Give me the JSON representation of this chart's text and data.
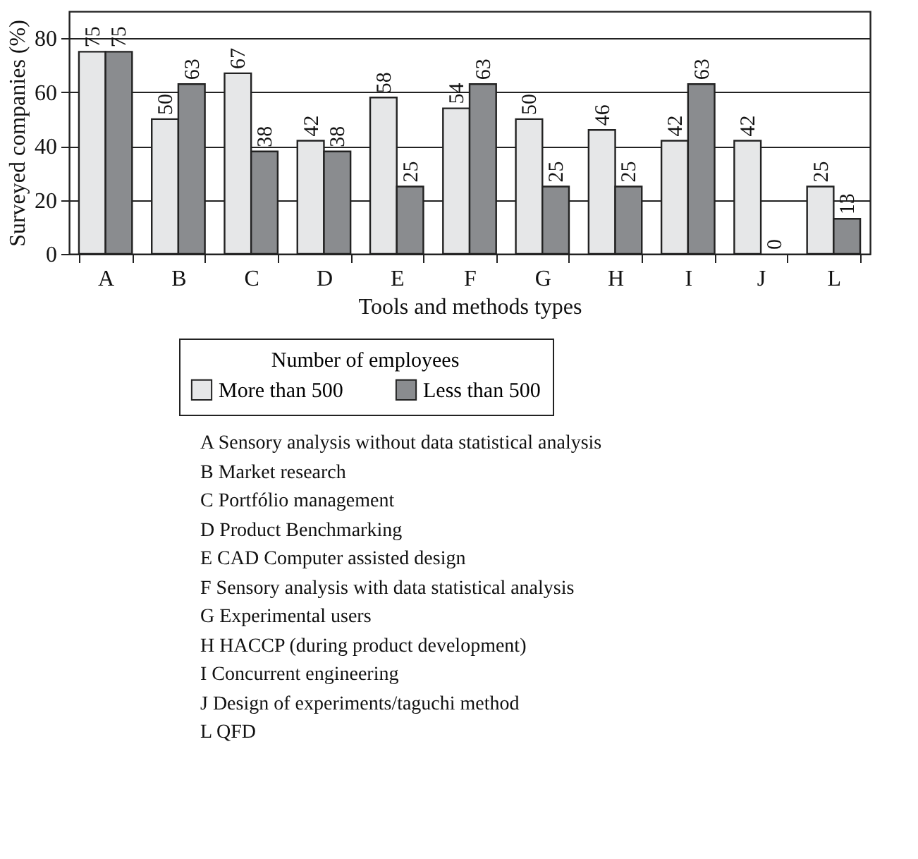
{
  "chart_data": {
    "type": "bar",
    "xlabel": "Tools and methods types",
    "ylabel": "Surveyed companies (%)",
    "legend_title": "Number of employees",
    "categories": [
      "A",
      "B",
      "C",
      "D",
      "E",
      "F",
      "G",
      "H",
      "I",
      "J",
      "L"
    ],
    "series": [
      {
        "name": "More than 500",
        "color": "#e6e7e8",
        "values": [
          75,
          50,
          67,
          42,
          58,
          54,
          50,
          46,
          42,
          42,
          25
        ]
      },
      {
        "name": "Less than 500",
        "color": "#8a8c8f",
        "values": [
          75,
          63,
          38,
          38,
          25,
          63,
          25,
          25,
          63,
          0,
          13
        ]
      }
    ],
    "ylim": [
      0,
      90
    ],
    "yticks": [
      0,
      20,
      40,
      60,
      80
    ],
    "grid": "y",
    "legend": "bottom",
    "data_labels": true,
    "annotations": [
      "A Sensory analysis without data statistical analysis",
      "B Market research",
      "C Portfólio management",
      "D Product Benchmarking",
      "E CAD Computer assisted design",
      "F Sensory analysis with data statistical analysis",
      "G Experimental users",
      "H HACCP (during product development)",
      "I Concurrent engineering",
      "J Design of experiments/taguchi method",
      "L QFD"
    ]
  }
}
